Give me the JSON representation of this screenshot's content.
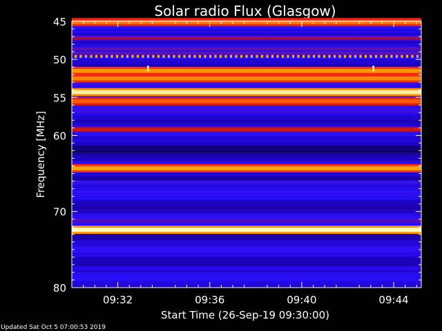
{
  "chart_data": {
    "type": "heatmap",
    "title": "Solar radio Flux (Glasgow)",
    "xlabel": "Start Time (26-Sep-19 09:30:00)",
    "ylabel": "Frequency [MHz]",
    "x_start": "09:30:00",
    "x_range_minutes": [
      0,
      15.2
    ],
    "x_ticks": [
      {
        "minute": 2,
        "label": "09:32"
      },
      {
        "minute": 6,
        "label": "09:36"
      },
      {
        "minute": 10,
        "label": "09:40"
      },
      {
        "minute": 14,
        "label": "09:44"
      }
    ],
    "y_range_mhz": [
      45,
      80
    ],
    "y_ticks": [
      45,
      50,
      55,
      60,
      70,
      80
    ],
    "colormap": [
      "#000000",
      "#1a00b4",
      "#2a10ff",
      "#c41010",
      "#ff3010",
      "#ffb000",
      "#ffffc0"
    ],
    "bands": [
      {
        "freq_mhz": 45.1,
        "intensity": 0.75
      },
      {
        "freq_mhz": 47.2,
        "intensity": 0.45
      },
      {
        "freq_mhz": 48.6,
        "intensity": 0.4
      },
      {
        "freq_mhz": 49.6,
        "intensity": 0.85,
        "pattern": "dotted"
      },
      {
        "freq_mhz": 51.5,
        "intensity": 0.8
      },
      {
        "freq_mhz": 52.5,
        "intensity": 0.78
      },
      {
        "freq_mhz": 54.3,
        "intensity": 0.97
      },
      {
        "freq_mhz": 55.5,
        "intensity": 0.72
      },
      {
        "freq_mhz": 59.2,
        "intensity": 0.55
      },
      {
        "freq_mhz": 64.3,
        "intensity": 0.82
      },
      {
        "freq_mhz": 66.2,
        "intensity": 0.35
      },
      {
        "freq_mhz": 72.4,
        "intensity": 1.0
      },
      {
        "freq_mhz": 77.5,
        "intensity": 0.3
      }
    ],
    "bursts": [
      {
        "minute": 3.3,
        "freq_mhz": 51.2
      },
      {
        "minute": 13.1,
        "freq_mhz": 51.2
      }
    ],
    "grid": false
  },
  "footer": {
    "updated": "Updated Sat Oct  5 07:00:53 2019"
  }
}
